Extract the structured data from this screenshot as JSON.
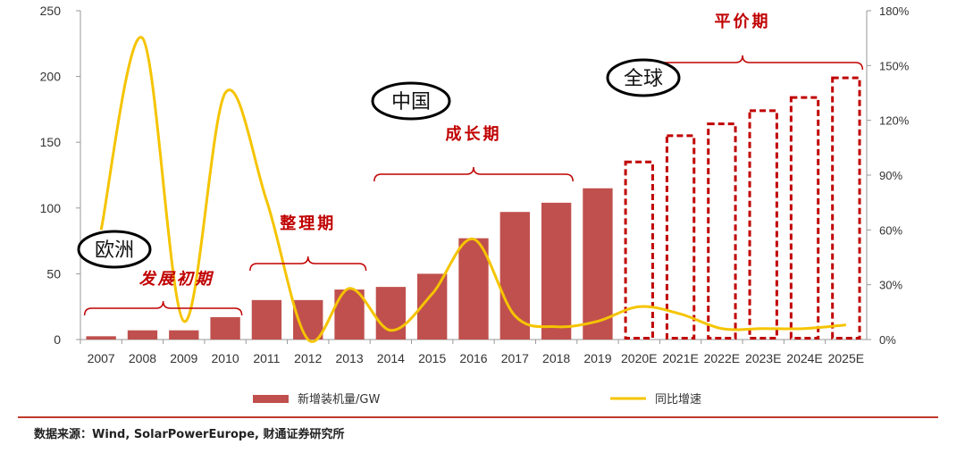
{
  "chart_data": {
    "type": "bar",
    "categories": [
      "2007",
      "2008",
      "2009",
      "2010",
      "2011",
      "2012",
      "2013",
      "2014",
      "2015",
      "2016",
      "2017",
      "2018",
      "2019",
      "2020E",
      "2021E",
      "2022E",
      "2023E",
      "2024E",
      "2025E"
    ],
    "series": [
      {
        "name": "新增装机量/GW",
        "axis": "left",
        "type": "bar",
        "values": [
          2.5,
          7,
          7,
          17,
          30,
          30,
          38,
          40,
          50,
          77,
          97,
          104,
          115,
          136,
          156,
          165,
          175,
          185,
          200
        ],
        "estimated": [
          false,
          false,
          false,
          false,
          false,
          false,
          false,
          false,
          false,
          false,
          false,
          false,
          false,
          true,
          true,
          true,
          true,
          true,
          true
        ]
      },
      {
        "name": "同比增速",
        "axis": "right",
        "type": "line",
        "values": [
          60,
          165,
          10,
          135,
          76,
          0,
          28,
          5,
          25,
          55,
          13,
          7,
          10,
          18,
          14,
          6,
          6,
          6,
          8
        ]
      }
    ],
    "y_left": {
      "min": 0,
      "max": 250,
      "ticks": [
        0,
        50,
        100,
        150,
        200,
        250
      ],
      "tick_labels": [
        "0",
        "50",
        "100",
        "150",
        "200",
        "250"
      ]
    },
    "y_right": {
      "min": 0,
      "max": 180,
      "ticks": [
        0,
        30,
        60,
        90,
        120,
        150,
        180
      ],
      "tick_labels": [
        "0%",
        "30%",
        "60%",
        "90%",
        "120%",
        "150%",
        "180%"
      ]
    },
    "annotations": {
      "phases": [
        {
          "label": "发展初期",
          "from": "2007",
          "to": "2010"
        },
        {
          "label": "整理期",
          "from": "2011",
          "to": "2013"
        },
        {
          "label": "成长期",
          "from": "2014",
          "to": "2018"
        },
        {
          "label": "平价期",
          "from": "2020E",
          "to": "2025E"
        }
      ],
      "regions": [
        {
          "label": "欧洲"
        },
        {
          "label": "中国"
        },
        {
          "label": "全球"
        }
      ]
    },
    "legend_position": "bottom"
  },
  "colors": {
    "bar": "#c0504d",
    "bar_estimated_border": "#c00000",
    "line": "#f5c400",
    "annotation": "#c00000",
    "axis": "#999999"
  },
  "source": "数据来源：Wind, SolarPowerEurope, 财通证券研究所"
}
